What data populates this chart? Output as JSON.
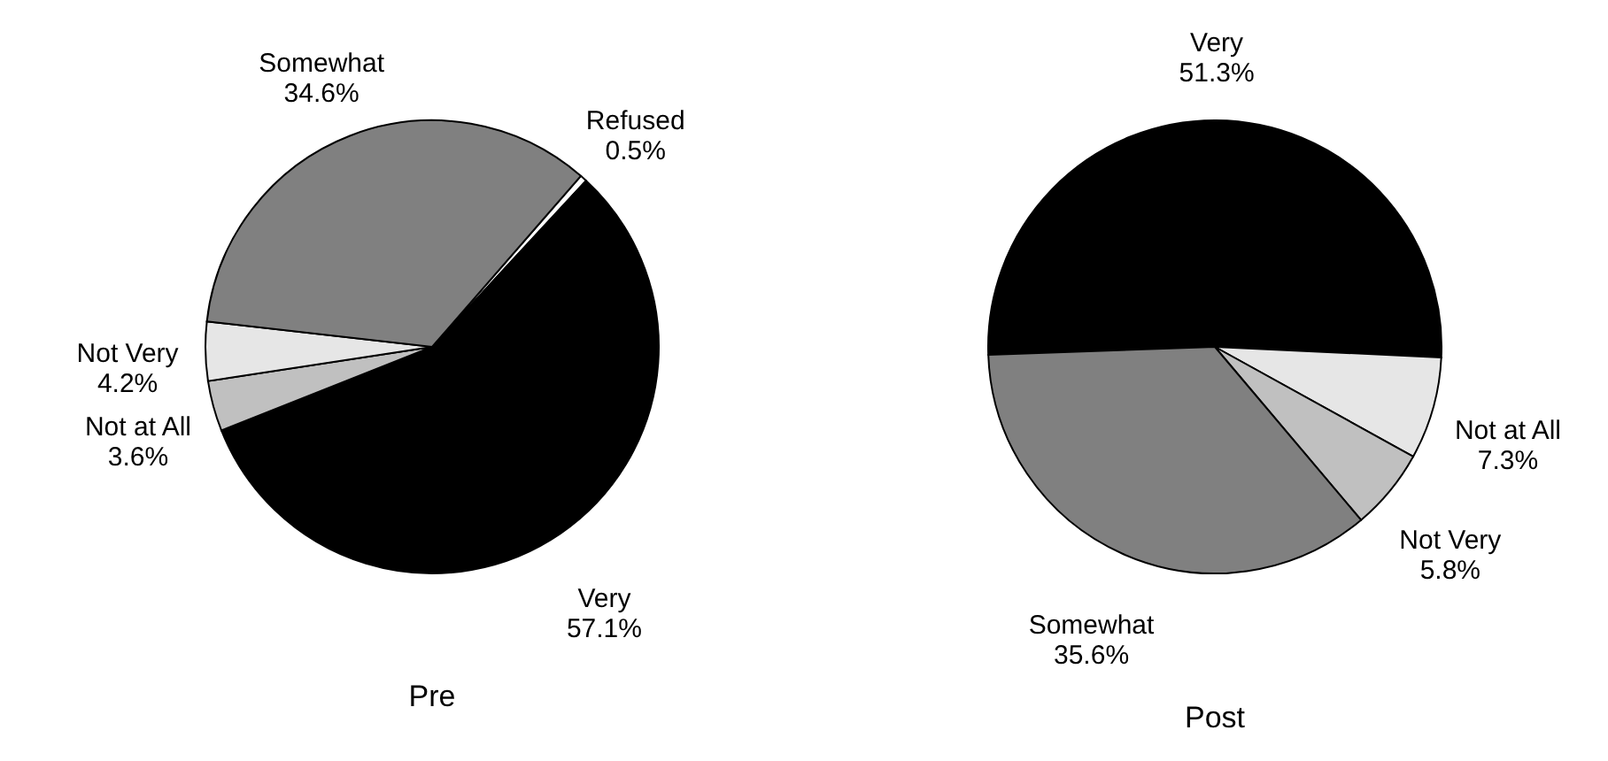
{
  "chart_data": [
    {
      "type": "pie",
      "title": "Pre",
      "categories": [
        "Refused",
        "Very",
        "Not at All",
        "Not Very",
        "Somewhat"
      ],
      "values": [
        0.5,
        57.1,
        3.6,
        4.2,
        34.6
      ],
      "value_labels": [
        "0.5%",
        "57.1%",
        "3.6%",
        "4.2%",
        "34.6%"
      ],
      "colors": [
        "#ffffff",
        "#000000",
        "#c0c0c0",
        "#e6e6e6",
        "#808080"
      ],
      "legend": false
    },
    {
      "type": "pie",
      "title": "Post",
      "categories": [
        "Very",
        "Not at All",
        "Not Very",
        "Somewhat"
      ],
      "values": [
        51.3,
        7.3,
        5.8,
        35.6
      ],
      "value_labels": [
        "51.3%",
        "7.3%",
        "5.8%",
        "35.6%"
      ],
      "colors": [
        "#000000",
        "#e6e6e6",
        "#c0c0c0",
        "#808080"
      ],
      "legend": false
    }
  ]
}
